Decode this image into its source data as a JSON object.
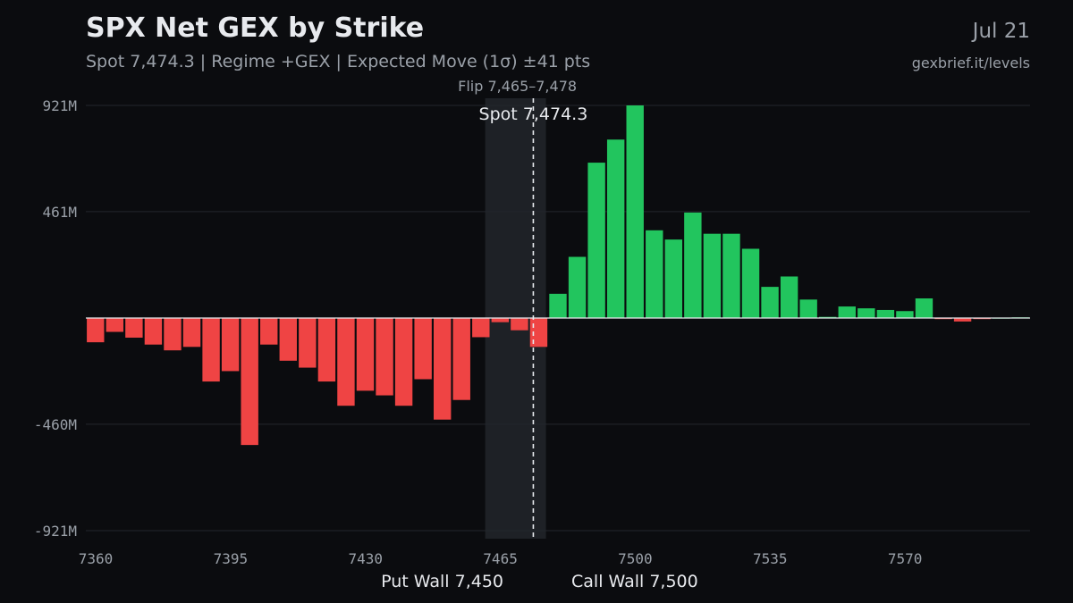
{
  "header": {
    "title": "SPX Net GEX by Strike",
    "subtitle": "Spot 7,474.3 | Regime +GEX | Expected Move (1σ) ±41 pts",
    "date": "Jul 21",
    "source": "gexbrief.it/levels"
  },
  "colors": {
    "positive": "#22c55e",
    "negative": "#ef4444",
    "background": "#0b0c0f",
    "grid": "#23262c",
    "flip_band": "#1e2126",
    "text_muted": "#9aa0a8",
    "text_bright": "#e8eaee"
  },
  "chart_data": {
    "type": "bar",
    "xlabel": "",
    "ylabel": "",
    "x": [
      7360,
      7365,
      7370,
      7375,
      7380,
      7385,
      7390,
      7395,
      7400,
      7405,
      7410,
      7415,
      7420,
      7425,
      7430,
      7435,
      7440,
      7445,
      7450,
      7455,
      7460,
      7465,
      7470,
      7475,
      7480,
      7485,
      7490,
      7495,
      7500,
      7505,
      7510,
      7515,
      7520,
      7525,
      7530,
      7535,
      7540,
      7545,
      7550,
      7555,
      7560,
      7565,
      7570,
      7575,
      7580,
      7585,
      7590,
      7595,
      7600
    ],
    "values": [
      -105,
      -60,
      -85,
      -115,
      -140,
      -125,
      -275,
      -230,
      -550,
      -115,
      -185,
      -215,
      -275,
      -380,
      -315,
      -335,
      -380,
      -265,
      -440,
      -355,
      -83,
      -18,
      -53,
      -125,
      105,
      265,
      673,
      773,
      921,
      380,
      340,
      457,
      365,
      365,
      300,
      135,
      180,
      80,
      5,
      50,
      42,
      35,
      30,
      85,
      -3,
      -15,
      -3,
      2,
      3
    ],
    "xlim": [
      7360,
      7605
    ],
    "ylim": [
      -921,
      921
    ],
    "y_ticks": [
      {
        "value": 921,
        "label": "921M"
      },
      {
        "value": 461,
        "label": "461M"
      },
      {
        "value": -460,
        "label": "-460M"
      },
      {
        "value": -921,
        "label": "-921M"
      }
    ],
    "x_ticks": [
      {
        "value": 7360,
        "label": "7360"
      },
      {
        "value": 7395,
        "label": "7395"
      },
      {
        "value": 7430,
        "label": "7430"
      },
      {
        "value": 7465,
        "label": "7465"
      },
      {
        "value": 7500,
        "label": "7500"
      },
      {
        "value": 7535,
        "label": "7535"
      },
      {
        "value": 7570,
        "label": "7570"
      }
    ],
    "grid": true,
    "flip_zone": {
      "from": 7465,
      "to": 7478,
      "label": "Flip 7,465–7,478"
    },
    "spot": {
      "value": 7474.3,
      "label": "Spot 7,474.3"
    },
    "put_wall": {
      "value": 7450,
      "label": "Put Wall 7,450"
    },
    "call_wall": {
      "value": 7500,
      "label": "Call Wall 7,500"
    }
  }
}
